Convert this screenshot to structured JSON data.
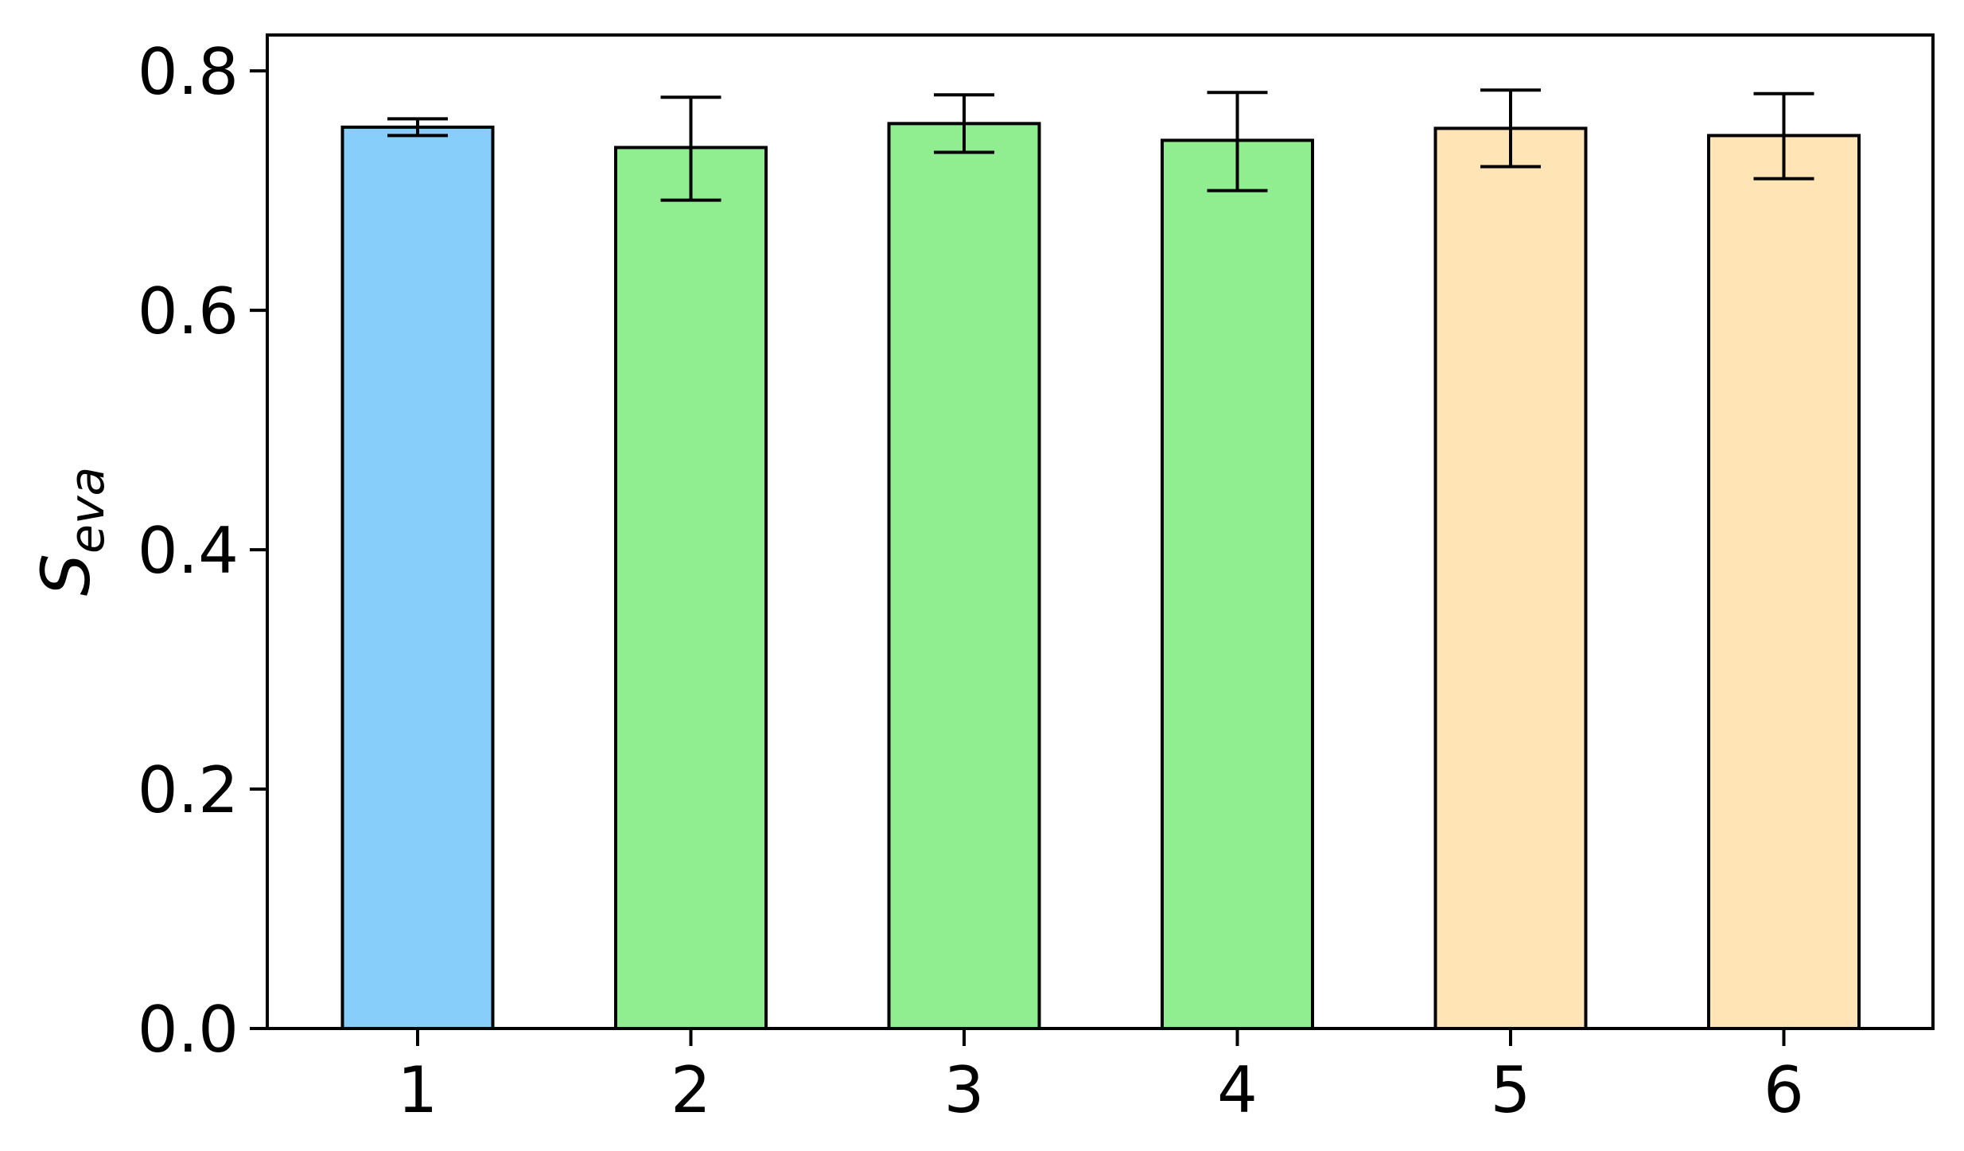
{
  "chart_data": {
    "type": "bar",
    "title": "",
    "xlabel": "",
    "ylabel": {
      "main": "S",
      "subscript": "eva"
    },
    "categories": [
      "1",
      "2",
      "3",
      "4",
      "5",
      "6"
    ],
    "values": [
      0.753,
      0.736,
      0.756,
      0.742,
      0.752,
      0.746
    ],
    "error_low": [
      0.746,
      0.692,
      0.732,
      0.7,
      0.72,
      0.71
    ],
    "error_high": [
      0.76,
      0.778,
      0.78,
      0.782,
      0.784,
      0.781
    ],
    "colors": [
      "#87CEFA",
      "#90EE90",
      "#90EE90",
      "#90EE90",
      "#FFE4B5",
      "#FFE4B5"
    ],
    "edge_color": "#000000",
    "ylim": [
      0.0,
      0.83
    ],
    "yticks": [
      0.0,
      0.2,
      0.4,
      0.6,
      0.8
    ],
    "ytick_labels": [
      "0.0",
      "0.2",
      "0.4",
      "0.6",
      "0.8"
    ],
    "grid": false,
    "legend": "none"
  }
}
